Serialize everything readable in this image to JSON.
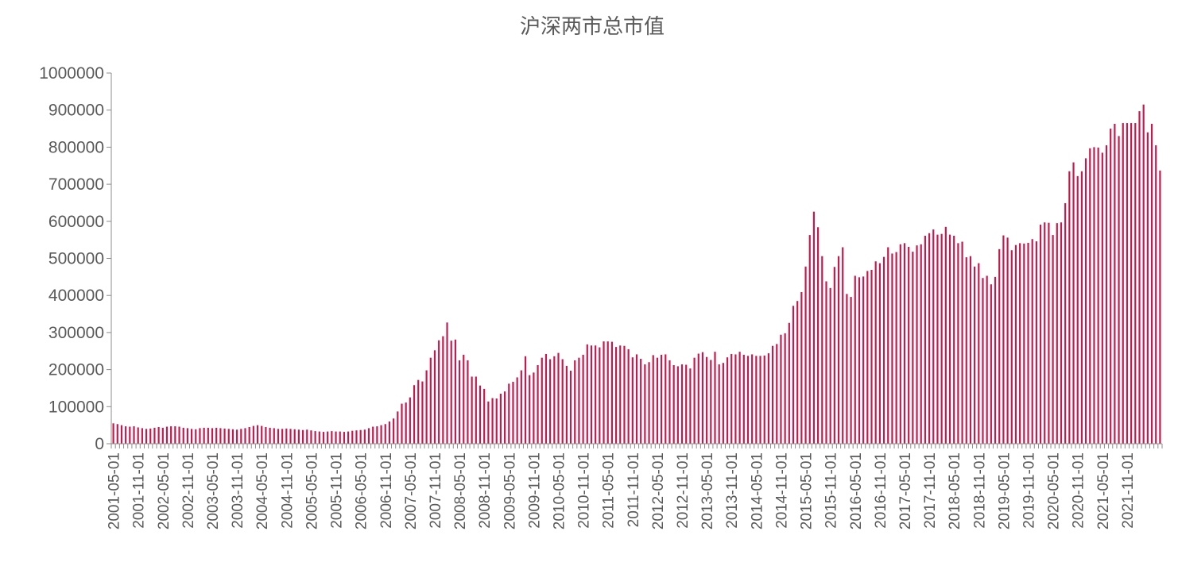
{
  "chart_data": {
    "type": "bar",
    "title": "沪深两市总市值",
    "xlabel": "",
    "ylabel": "",
    "ylim": [
      0,
      1000000
    ],
    "y_ticks": [
      "0",
      "100000",
      "200000",
      "300000",
      "400000",
      "500000",
      "600000",
      "700000",
      "800000",
      "900000",
      "1000000"
    ],
    "x_start": "2001-05",
    "x_label_every_months": 6,
    "x_tick_labels": [
      "2001-05-01",
      "2001-11-01",
      "2002-05-01",
      "2002-11-01",
      "2003-05-01",
      "2003-11-01",
      "2004-05-01",
      "2004-11-01",
      "2005-05-01",
      "2005-11-01",
      "2006-05-01",
      "2006-11-01",
      "2007-05-01",
      "2007-11-01",
      "2008-05-01",
      "2008-11-01",
      "2009-05-01",
      "2009-11-01",
      "2010-05-01",
      "2010-11-01",
      "2011-05-01",
      "2011-11-01",
      "2012-05-01",
      "2012-11-01",
      "2013-05-01",
      "2013-11-01",
      "2014-05-01",
      "2014-11-01",
      "2015-05-01",
      "2015-11-01",
      "2016-05-01",
      "2016-11-01",
      "2017-05-01",
      "2017-11-01",
      "2018-05-01",
      "2018-11-01",
      "2019-05-01",
      "2019-11-01",
      "2020-05-01",
      "2020-11-01",
      "2021-05-01",
      "2021-11-01"
    ],
    "grid": false,
    "legend": "none",
    "bar_color": "#c8174a",
    "values": [
      55000,
      53000,
      50000,
      47000,
      46000,
      47000,
      44000,
      42000,
      40000,
      41000,
      43000,
      45000,
      43000,
      46000,
      47000,
      47000,
      46000,
      43000,
      42000,
      40000,
      39000,
      42000,
      43000,
      43000,
      42000,
      43000,
      42000,
      41000,
      40000,
      39000,
      38000,
      40000,
      42000,
      45000,
      48000,
      50000,
      48000,
      45000,
      43000,
      42000,
      40000,
      40000,
      41000,
      40000,
      39000,
      38000,
      37000,
      38000,
      36000,
      34000,
      33000,
      32000,
      33000,
      34000,
      33000,
      33000,
      32000,
      33000,
      35000,
      36000,
      37000,
      38000,
      42000,
      46000,
      47000,
      50000,
      53000,
      60000,
      68000,
      87000,
      108000,
      111000,
      125000,
      158000,
      172000,
      168000,
      198000,
      232000,
      252000,
      279000,
      290000,
      327000,
      278000,
      281000,
      225000,
      240000,
      225000,
      181000,
      181000,
      157000,
      148000,
      114000,
      123000,
      122000,
      135000,
      141000,
      162000,
      167000,
      179000,
      198000,
      236000,
      185000,
      192000,
      212000,
      232000,
      242000,
      228000,
      236000,
      245000,
      228000,
      210000,
      197000,
      225000,
      232000,
      240000,
      268000,
      265000,
      265000,
      260000,
      276000,
      276000,
      275000,
      261000,
      265000,
      264000,
      255000,
      233000,
      241000,
      229000,
      214000,
      220000,
      239000,
      232000,
      240000,
      241000,
      225000,
      212000,
      209000,
      214000,
      213000,
      203000,
      232000,
      243000,
      247000,
      234000,
      226000,
      248000,
      214000,
      218000,
      233000,
      242000,
      241000,
      248000,
      240000,
      237000,
      241000,
      237000,
      237000,
      238000,
      244000,
      264000,
      269000,
      294000,
      298000,
      326000,
      372000,
      385000,
      409000,
      478000,
      563000,
      626000,
      584000,
      506000,
      438000,
      420000,
      477000,
      506000,
      530000,
      404000,
      396000,
      453000,
      449000,
      451000,
      466000,
      469000,
      492000,
      487000,
      504000,
      530000,
      513000,
      517000,
      538000,
      541000,
      531000,
      518000,
      535000,
      538000,
      561000,
      568000,
      578000,
      564000,
      566000,
      585000,
      564000,
      561000,
      541000,
      545000,
      503000,
      506000,
      478000,
      487000,
      447000,
      453000,
      430000,
      450000,
      525000,
      562000,
      556000,
      522000,
      536000,
      541000,
      540000,
      542000,
      552000,
      546000,
      591000,
      597000,
      596000,
      563000,
      595000,
      597000,
      649000,
      735000,
      759000,
      722000,
      735000,
      770000,
      797000,
      800000,
      799000,
      785000,
      805000,
      850000,
      863000,
      830000,
      865000,
      865000,
      865000,
      865000,
      897000,
      915000,
      840000,
      863000,
      805000,
      737000
    ]
  }
}
